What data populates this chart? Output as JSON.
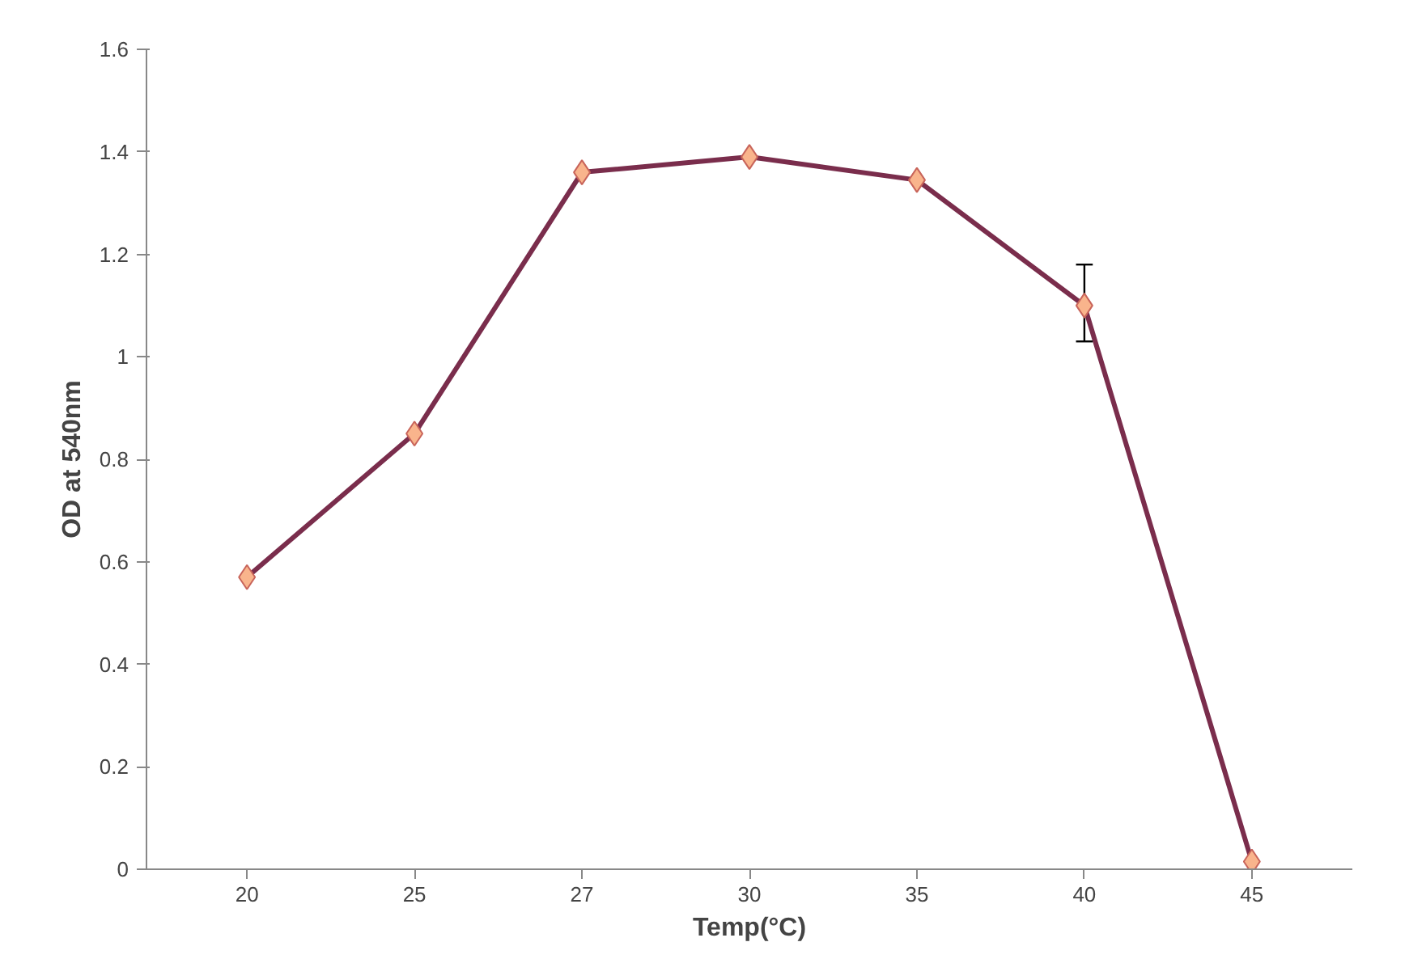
{
  "chart_data": {
    "type": "line",
    "xlabel": "Temp(°C)",
    "ylabel": "OD at 540nm",
    "categories": [
      "20",
      "25",
      "27",
      "30",
      "35",
      "40",
      "45"
    ],
    "series": [
      {
        "color": "#7a2d4c",
        "values": [
          0.57,
          0.85,
          1.36,
          1.39,
          1.345,
          1.1,
          0.015
        ],
        "errors": [
          null,
          null,
          null,
          null,
          null,
          [
            1.03,
            1.18
          ],
          null
        ]
      }
    ],
    "ylim": [
      0,
      1.6
    ],
    "yticks": [
      0,
      0.2,
      0.4,
      0.6,
      0.8,
      1,
      1.2,
      1.4,
      1.6
    ],
    "grid": false,
    "marker": "diamond",
    "line_style": "solid"
  }
}
